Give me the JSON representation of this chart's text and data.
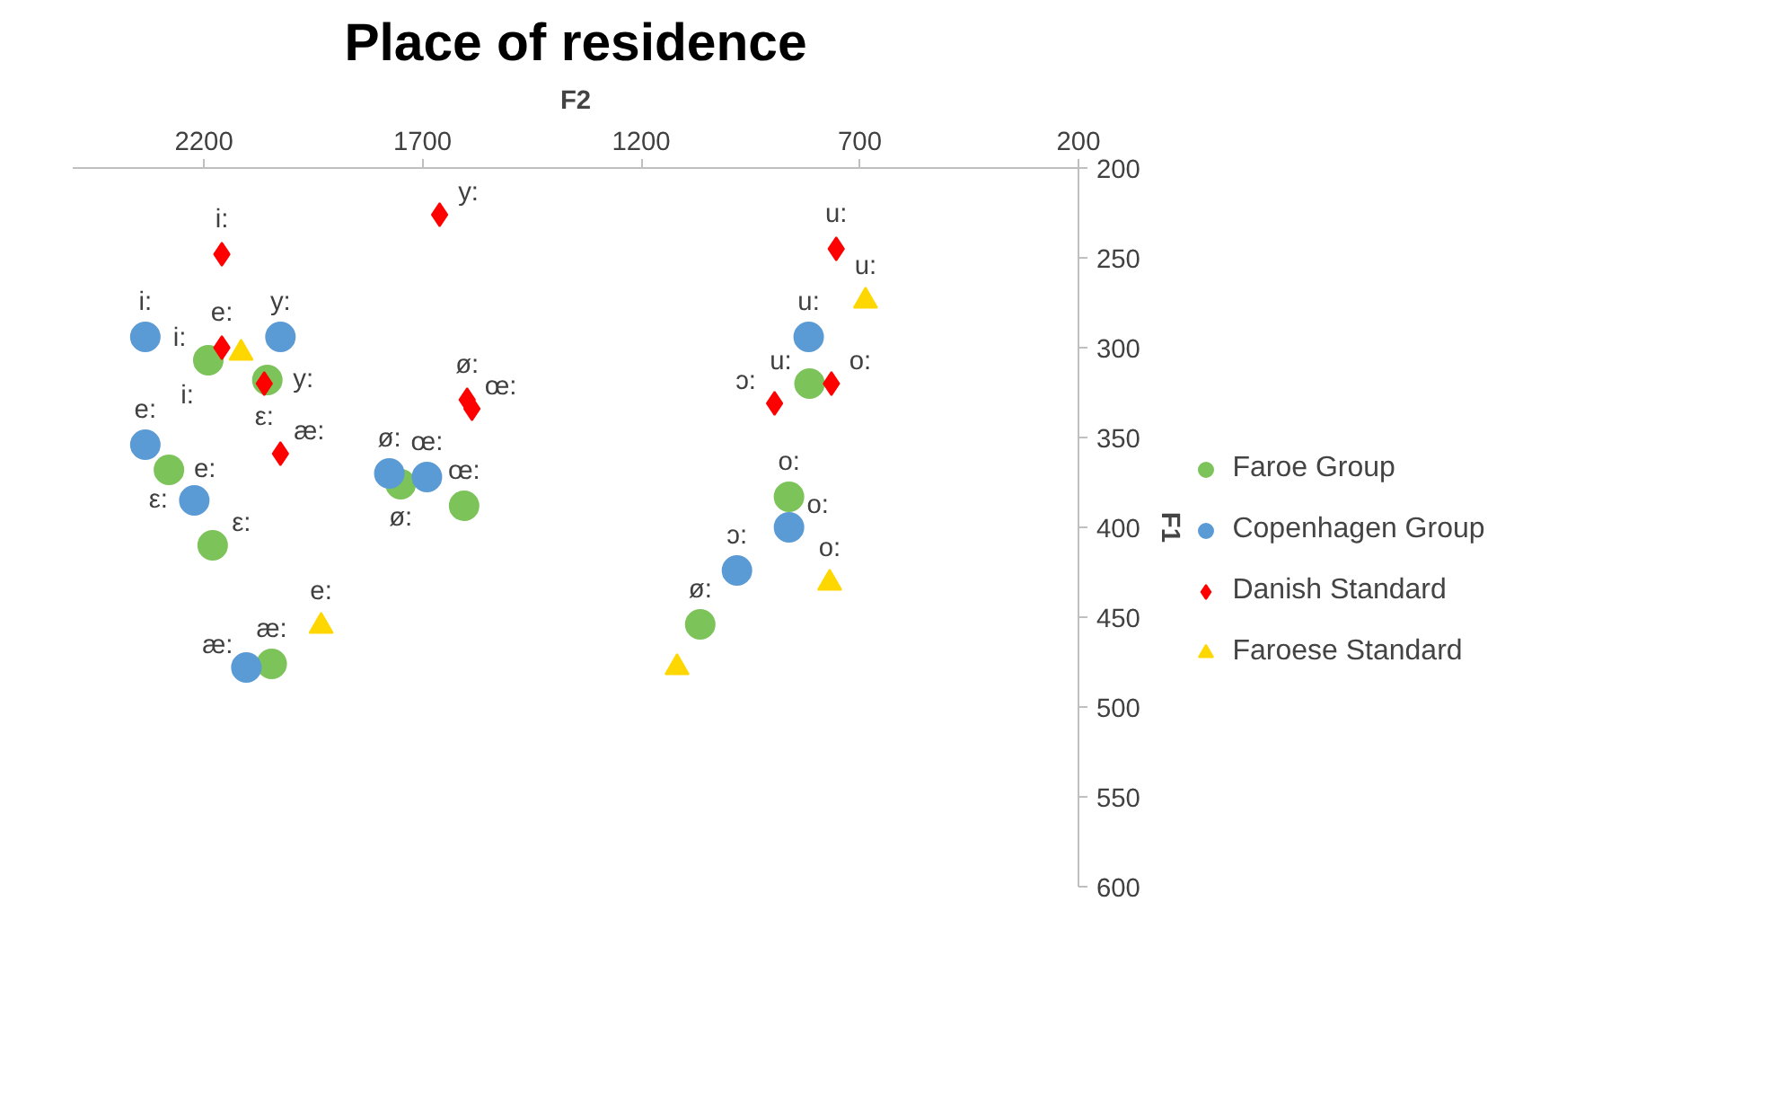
{
  "chart_data": {
    "type": "scatter",
    "title": "Place of residence",
    "xlabel": "F2",
    "ylabel": "F1",
    "xlim": [
      2500,
      200
    ],
    "xticks": [
      2200,
      1700,
      1200,
      700,
      200
    ],
    "ylim": [
      600,
      200
    ],
    "yticks": [
      200,
      250,
      300,
      350,
      400,
      450,
      500,
      550,
      600
    ],
    "grid": false,
    "legend": "right",
    "series": [
      {
        "name": "Faroe Group",
        "color": "#7cc35a",
        "marker": "circle",
        "x": [
          2190,
          2055,
          2280,
          2180,
          2045,
          1750,
          1605,
          1065,
          815,
          862
        ],
        "values": [
          307,
          318,
          368,
          410,
          476,
          376,
          388,
          454,
          320,
          383
        ]
      },
      {
        "name": "Copenhagen Group",
        "color": "#5b9bd5",
        "marker": "circle",
        "x": [
          2334,
          2025,
          2334,
          2222,
          2103,
          1776,
          1690,
          981,
          862,
          817
        ],
        "values": [
          294,
          294,
          354,
          385,
          478,
          370,
          372,
          424,
          400,
          294
        ]
      },
      {
        "name": "Danish Standard",
        "color": "#ff0000",
        "marker": "diamond",
        "x": [
          2159,
          2159,
          2062,
          2025,
          1661,
          1598,
          1587,
          754,
          765,
          895
        ],
        "values": [
          248,
          300,
          320,
          359,
          226,
          329,
          334,
          245,
          320,
          331
        ]
      },
      {
        "name": "Faroese Standard",
        "color": "#ffd700",
        "marker": "triangle",
        "x": [
          2115,
          1932,
          687,
          769,
          1118
        ],
        "values": [
          303,
          455,
          274,
          431,
          478
        ]
      }
    ],
    "annotations": [
      {
        "text": "i:",
        "x": 2190,
        "y": 307
      },
      {
        "text": "y:",
        "x": 2055,
        "y": 318
      },
      {
        "text": "e:",
        "x": 2280,
        "y": 368
      },
      {
        "text": "ε:",
        "x": 2180,
        "y": 410
      },
      {
        "text": "æ:",
        "x": 2045,
        "y": 476
      },
      {
        "text": "ø:",
        "x": 1750,
        "y": 376
      },
      {
        "text": "œ:",
        "x": 1605,
        "y": 388
      },
      {
        "text": "ø:",
        "x": 1065,
        "y": 454
      },
      {
        "text": "u:",
        "x": 815,
        "y": 320
      },
      {
        "text": "o:",
        "x": 862,
        "y": 383
      },
      {
        "text": "i:",
        "x": 2334,
        "y": 294
      },
      {
        "text": "y:",
        "x": 2025,
        "y": 294
      },
      {
        "text": "e:",
        "x": 2334,
        "y": 354
      },
      {
        "text": "ε:",
        "x": 2222,
        "y": 385
      },
      {
        "text": "æ:",
        "x": 2103,
        "y": 478
      },
      {
        "text": "ø:",
        "x": 1776,
        "y": 370
      },
      {
        "text": "œ:",
        "x": 1690,
        "y": 372
      },
      {
        "text": "ɔ:",
        "x": 981,
        "y": 424
      },
      {
        "text": "o:",
        "x": 862,
        "y": 400
      },
      {
        "text": "u:",
        "x": 817,
        "y": 294
      },
      {
        "text": "i:",
        "x": 2159,
        "y": 248
      },
      {
        "text": "e:",
        "x": 2159,
        "y": 300
      },
      {
        "text": "ε:",
        "x": 2062,
        "y": 320
      },
      {
        "text": "æ:",
        "x": 2025,
        "y": 359
      },
      {
        "text": "y:",
        "x": 1661,
        "y": 226
      },
      {
        "text": "ø:",
        "x": 1598,
        "y": 329
      },
      {
        "text": "œ:",
        "x": 1587,
        "y": 334
      },
      {
        "text": "u:",
        "x": 754,
        "y": 245
      },
      {
        "text": "o:",
        "x": 765,
        "y": 320
      },
      {
        "text": "ɔ:",
        "x": 895,
        "y": 331
      },
      {
        "text": "i:",
        "x": 2115,
        "y": 303
      },
      {
        "text": "e:",
        "x": 1932,
        "y": 455
      },
      {
        "text": "u:",
        "x": 687,
        "y": 274
      },
      {
        "text": "o:",
        "x": 769,
        "y": 431
      }
    ]
  }
}
